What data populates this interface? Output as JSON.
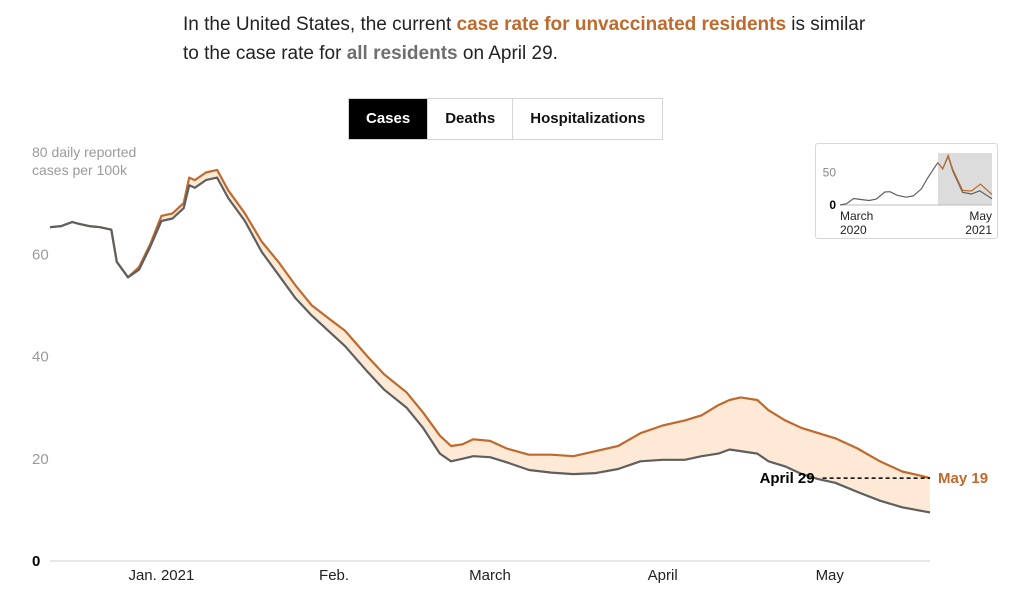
{
  "headline": {
    "part1": "In the United States, the current ",
    "unvax": "case rate for unvaccinated residents",
    "part2": " is similar to the case rate for ",
    "all": "all residents",
    "part3": " on April 29."
  },
  "tabs": [
    {
      "label": "Cases",
      "active": true
    },
    {
      "label": "Deaths",
      "active": false
    },
    {
      "label": "Hospitalizations",
      "active": false
    }
  ],
  "colors": {
    "unvaccinated": "#bf6a2c",
    "all": "#5f5f5f",
    "band": "#fde9d6",
    "accent_text": "#bf6a2c"
  },
  "chart_data": {
    "type": "line",
    "ylabel": "80 daily reported cases per 100k",
    "ylabel_lines": [
      "80 daily reported",
      "cases per 100k"
    ],
    "ylim": [
      0,
      80
    ],
    "y_ticks": [
      {
        "value": 20,
        "label": "20"
      },
      {
        "value": 40,
        "label": "40"
      },
      {
        "value": 60,
        "label": "60"
      },
      {
        "value": 0,
        "label": "0"
      }
    ],
    "x_ticks": [
      {
        "date": "2021-01-01",
        "label": "Jan. 2021"
      },
      {
        "date": "2021-02-01",
        "label": "Feb."
      },
      {
        "date": "2021-03-01",
        "label": "March"
      },
      {
        "date": "2021-04-01",
        "label": "April"
      },
      {
        "date": "2021-05-01",
        "label": "May"
      }
    ],
    "x_range": [
      "2020-12-12",
      "2021-05-19"
    ],
    "grid": false,
    "series": [
      {
        "key": "unvaccinated",
        "points": [
          [
            "2020-12-12",
            65.3
          ],
          [
            "2020-12-14",
            65.5
          ],
          [
            "2020-12-16",
            66.3
          ],
          [
            "2020-12-17",
            66.0
          ],
          [
            "2020-12-19",
            65.5
          ],
          [
            "2020-12-21",
            65.3
          ],
          [
            "2020-12-23",
            64.8
          ],
          [
            "2020-12-24",
            58.5
          ],
          [
            "2020-12-26",
            55.5
          ],
          [
            "2020-12-28",
            57.5
          ],
          [
            "2020-12-30",
            62.0
          ],
          [
            "2021-01-01",
            67.5
          ],
          [
            "2021-01-03",
            68.0
          ],
          [
            "2021-01-05",
            70.0
          ],
          [
            "2021-01-06",
            75.0
          ],
          [
            "2021-01-07",
            74.5
          ],
          [
            "2021-01-09",
            76.0
          ],
          [
            "2021-01-11",
            76.5
          ],
          [
            "2021-01-13",
            72.5
          ],
          [
            "2021-01-16",
            68.0
          ],
          [
            "2021-01-19",
            62.5
          ],
          [
            "2021-01-22",
            58.5
          ],
          [
            "2021-01-25",
            54.0
          ],
          [
            "2021-01-28",
            50.0
          ],
          [
            "2021-01-31",
            47.5
          ],
          [
            "2021-02-03",
            45.0
          ],
          [
            "2021-02-07",
            40.0
          ],
          [
            "2021-02-10",
            36.5
          ],
          [
            "2021-02-14",
            33.0
          ],
          [
            "2021-02-17",
            29.0
          ],
          [
            "2021-02-20",
            24.5
          ],
          [
            "2021-02-22",
            22.5
          ],
          [
            "2021-02-24",
            22.8
          ],
          [
            "2021-02-26",
            23.8
          ],
          [
            "2021-03-01",
            23.5
          ],
          [
            "2021-03-04",
            22.0
          ],
          [
            "2021-03-08",
            20.8
          ],
          [
            "2021-03-12",
            20.8
          ],
          [
            "2021-03-16",
            20.5
          ],
          [
            "2021-03-20",
            21.5
          ],
          [
            "2021-03-24",
            22.5
          ],
          [
            "2021-03-28",
            25.0
          ],
          [
            "2021-04-01",
            26.5
          ],
          [
            "2021-04-05",
            27.5
          ],
          [
            "2021-04-08",
            28.5
          ],
          [
            "2021-04-11",
            30.5
          ],
          [
            "2021-04-13",
            31.5
          ],
          [
            "2021-04-15",
            32.0
          ],
          [
            "2021-04-18",
            31.5
          ],
          [
            "2021-04-20",
            29.5
          ],
          [
            "2021-04-23",
            27.5
          ],
          [
            "2021-04-26",
            26.0
          ],
          [
            "2021-04-29",
            25.0
          ],
          [
            "2021-05-02",
            24.0
          ],
          [
            "2021-05-06",
            22.0
          ],
          [
            "2021-05-10",
            19.5
          ],
          [
            "2021-05-14",
            17.5
          ],
          [
            "2021-05-18",
            16.5
          ],
          [
            "2021-05-19",
            16.2
          ]
        ]
      },
      {
        "key": "all",
        "points": [
          [
            "2020-12-12",
            65.3
          ],
          [
            "2020-12-14",
            65.5
          ],
          [
            "2020-12-16",
            66.3
          ],
          [
            "2020-12-17",
            66.0
          ],
          [
            "2020-12-19",
            65.5
          ],
          [
            "2020-12-21",
            65.3
          ],
          [
            "2020-12-23",
            64.8
          ],
          [
            "2020-12-24",
            58.5
          ],
          [
            "2020-12-26",
            55.5
          ],
          [
            "2020-12-28",
            57.0
          ],
          [
            "2020-12-30",
            61.5
          ],
          [
            "2021-01-01",
            66.5
          ],
          [
            "2021-01-03",
            67.0
          ],
          [
            "2021-01-05",
            69.0
          ],
          [
            "2021-01-06",
            73.5
          ],
          [
            "2021-01-07",
            73.0
          ],
          [
            "2021-01-09",
            74.5
          ],
          [
            "2021-01-11",
            75.0
          ],
          [
            "2021-01-13",
            71.0
          ],
          [
            "2021-01-16",
            66.5
          ],
          [
            "2021-01-19",
            60.5
          ],
          [
            "2021-01-22",
            56.0
          ],
          [
            "2021-01-25",
            51.5
          ],
          [
            "2021-01-28",
            48.0
          ],
          [
            "2021-01-31",
            45.0
          ],
          [
            "2021-02-03",
            42.0
          ],
          [
            "2021-02-07",
            37.0
          ],
          [
            "2021-02-10",
            33.5
          ],
          [
            "2021-02-14",
            30.0
          ],
          [
            "2021-02-17",
            26.0
          ],
          [
            "2021-02-20",
            21.0
          ],
          [
            "2021-02-22",
            19.5
          ],
          [
            "2021-02-24",
            20.0
          ],
          [
            "2021-02-26",
            20.5
          ],
          [
            "2021-03-01",
            20.3
          ],
          [
            "2021-03-04",
            19.3
          ],
          [
            "2021-03-08",
            17.8
          ],
          [
            "2021-03-12",
            17.3
          ],
          [
            "2021-03-16",
            17.0
          ],
          [
            "2021-03-20",
            17.2
          ],
          [
            "2021-03-24",
            18.0
          ],
          [
            "2021-03-28",
            19.5
          ],
          [
            "2021-04-01",
            19.8
          ],
          [
            "2021-04-05",
            19.8
          ],
          [
            "2021-04-08",
            20.5
          ],
          [
            "2021-04-11",
            21.0
          ],
          [
            "2021-04-13",
            21.8
          ],
          [
            "2021-04-15",
            21.5
          ],
          [
            "2021-04-18",
            21.0
          ],
          [
            "2021-04-20",
            19.5
          ],
          [
            "2021-04-23",
            18.5
          ],
          [
            "2021-04-26",
            17.0
          ],
          [
            "2021-04-29",
            16.0
          ],
          [
            "2021-05-02",
            15.3
          ],
          [
            "2021-05-06",
            13.5
          ],
          [
            "2021-05-10",
            11.8
          ],
          [
            "2021-05-14",
            10.5
          ],
          [
            "2021-05-18",
            9.7
          ],
          [
            "2021-05-19",
            9.5
          ]
        ]
      }
    ],
    "annotations": [
      {
        "key": "april29",
        "label": "April 29",
        "date": "2021-04-29",
        "value": 16.0
      },
      {
        "key": "may19",
        "label": "May 19",
        "date": "2021-05-19",
        "value": 16.2
      }
    ]
  },
  "inset": {
    "y_ticks": [
      {
        "value": 50,
        "label": "50"
      },
      {
        "value": 0,
        "label": "0"
      }
    ],
    "x_start": [
      "March",
      "2020"
    ],
    "x_end": [
      "May",
      "2021"
    ],
    "x_range": [
      "2020-03-01",
      "2021-05-19"
    ],
    "ylim": [
      0,
      80
    ],
    "highlight_range": [
      "2020-12-12",
      "2021-05-19"
    ],
    "series_all": [
      [
        "2020-03-01",
        0
      ],
      [
        "2020-03-20",
        2
      ],
      [
        "2020-04-10",
        10
      ],
      [
        "2020-05-01",
        8.5
      ],
      [
        "2020-05-25",
        7
      ],
      [
        "2020-06-15",
        9
      ],
      [
        "2020-07-10",
        20
      ],
      [
        "2020-07-25",
        20.5
      ],
      [
        "2020-08-15",
        15
      ],
      [
        "2020-09-10",
        12
      ],
      [
        "2020-10-01",
        14
      ],
      [
        "2020-10-25",
        25
      ],
      [
        "2020-11-10",
        40
      ],
      [
        "2020-11-25",
        52
      ],
      [
        "2020-12-05",
        60
      ],
      [
        "2020-12-12",
        65
      ],
      [
        "2020-12-26",
        55.5
      ],
      [
        "2021-01-11",
        75
      ],
      [
        "2021-01-25",
        51.5
      ],
      [
        "2021-02-22",
        19.5
      ],
      [
        "2021-03-20",
        17
      ],
      [
        "2021-04-13",
        21.8
      ],
      [
        "2021-05-19",
        9.5
      ]
    ],
    "series_unvax": [
      [
        "2020-12-12",
        65
      ],
      [
        "2020-12-26",
        55.5
      ],
      [
        "2021-01-11",
        76.5
      ],
      [
        "2021-01-25",
        54
      ],
      [
        "2021-02-22",
        22.5
      ],
      [
        "2021-03-20",
        21.5
      ],
      [
        "2021-04-15",
        32
      ],
      [
        "2021-05-19",
        16.2
      ]
    ]
  }
}
